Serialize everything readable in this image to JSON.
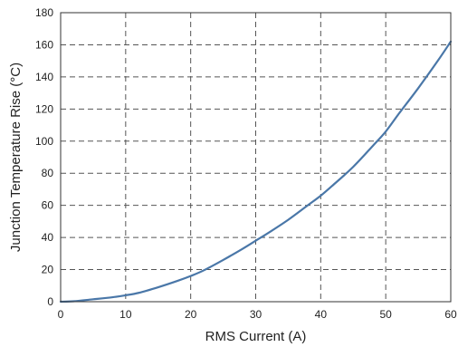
{
  "chart_data": {
    "type": "line",
    "title": "",
    "xlabel": "RMS Current (A)",
    "ylabel": "Junction Temperature Rise  (°C)",
    "xlim": [
      0,
      60
    ],
    "ylim": [
      0,
      180
    ],
    "xticks": [
      0,
      10,
      20,
      30,
      40,
      50,
      60
    ],
    "yticks": [
      0,
      20,
      40,
      60,
      80,
      100,
      120,
      140,
      160,
      180
    ],
    "grid": true,
    "grid_style": "dashed",
    "line_color": "#4a77a8",
    "series": [
      {
        "x": [
          0,
          2,
          5,
          8,
          10,
          12,
          15,
          18,
          20,
          22,
          25,
          28,
          30,
          32,
          35,
          38,
          40,
          42,
          45,
          48,
          50,
          52,
          55,
          58,
          60
        ],
        "values": [
          0,
          0.3,
          1.5,
          2.8,
          4,
          5.5,
          9,
          13,
          16,
          19.5,
          26,
          33,
          38,
          43,
          51,
          60,
          66,
          73,
          84,
          97,
          106,
          117,
          133,
          150,
          162
        ]
      }
    ]
  }
}
